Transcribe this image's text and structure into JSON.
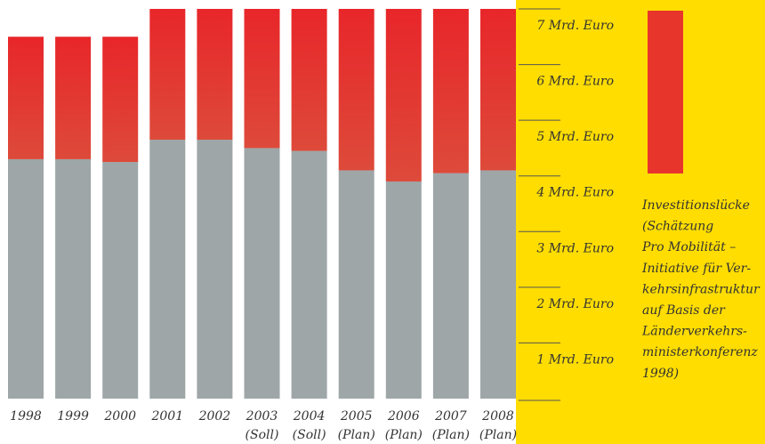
{
  "chart_data": {
    "type": "stacked-bar",
    "categories": [
      "1998",
      "1999",
      "2000",
      "2001",
      "2002",
      "2003",
      "2004",
      "2005",
      "2006",
      "2007",
      "2008"
    ],
    "category_notes": [
      null,
      null,
      null,
      null,
      null,
      "(Soll)",
      "(Soll)",
      "(Plan)",
      "(Plan)",
      "(Plan)",
      "(Plan)"
    ],
    "series": [
      {
        "color": "#9ea6a8",
        "values": [
          4.3,
          4.3,
          4.25,
          4.65,
          4.65,
          4.5,
          4.45,
          4.1,
          3.9,
          4.05,
          4.1
        ]
      },
      {
        "color": "#e8352b",
        "values": [
          2.2,
          2.2,
          2.25,
          2.35,
          2.35,
          2.5,
          2.55,
          2.9,
          3.1,
          2.95,
          2.9
        ]
      }
    ],
    "ylim": [
      0,
      7
    ],
    "yticks": [
      {
        "value": 1,
        "label": "1 Mrd. Euro"
      },
      {
        "value": 2,
        "label": "2 Mrd. Euro"
      },
      {
        "value": 3,
        "label": "3 Mrd. Euro"
      },
      {
        "value": 4,
        "label": "4 Mrd. Euro"
      },
      {
        "value": 5,
        "label": "5 Mrd. Euro"
      },
      {
        "value": 6,
        "label": "6 Mrd. Euro"
      },
      {
        "value": 7,
        "label": "7 Mrd. Euro"
      }
    ],
    "legend_text": [
      "Investitionslücke",
      "(Schätzung",
      "Pro Mobilität –",
      "Initiative für Ver-",
      "kehrsinfrastruktur",
      "auf Basis der",
      "Länderverkehrs-",
      "ministerkonferenz",
      "1998)"
    ]
  }
}
